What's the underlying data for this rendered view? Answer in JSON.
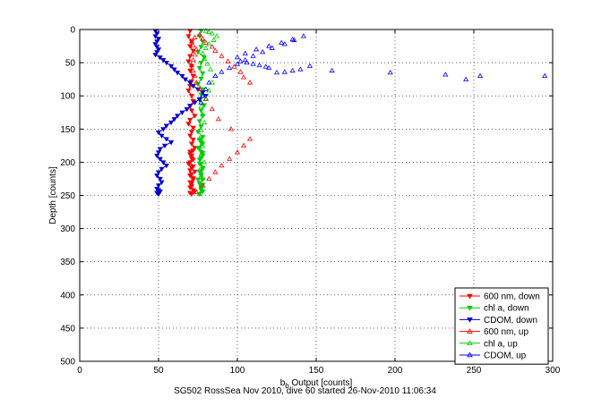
{
  "caption": "SG502 RossSea Nov 2010, dive 60 started 26-Nov-2010 11:06:34",
  "chart_data": {
    "type": "line",
    "xlabel_main": "b",
    "xlabel_sub": "b",
    "xlabel_rest": " Output [counts]",
    "ylabel": "Depth [counts]",
    "xlim": [
      0,
      300
    ],
    "ylim": [
      0,
      500
    ],
    "y_reversed": true,
    "grid": true,
    "legend_placement": "bottom-right",
    "xticks": [
      0,
      50,
      100,
      150,
      200,
      250,
      300
    ],
    "yticks": [
      0,
      50,
      100,
      150,
      200,
      250,
      300,
      350,
      400,
      450,
      500
    ],
    "series": [
      {
        "name": "600 nm, down",
        "color": "#ff0000",
        "marker": "triangle-down",
        "x": [
          70,
          69,
          71,
          70,
          72,
          70,
          69,
          71,
          70,
          72,
          71,
          70,
          69,
          71,
          72,
          70,
          71,
          73,
          70,
          69,
          72,
          71,
          70,
          72,
          71,
          73,
          70,
          71,
          72,
          69,
          71,
          73,
          70,
          72,
          71,
          70,
          73,
          71,
          70,
          72,
          71,
          70,
          72,
          71,
          70,
          72,
          70,
          71,
          70,
          72
        ],
        "y": [
          2,
          10,
          18,
          25,
          32,
          40,
          48,
          55,
          62,
          70,
          78,
          85,
          92,
          100,
          108,
          115,
          122,
          130,
          136,
          142,
          148,
          154,
          160,
          166,
          172,
          178,
          184,
          190,
          196,
          202,
          208,
          214,
          220,
          226,
          232,
          238,
          244,
          248,
          246,
          242,
          236,
          230,
          224,
          218,
          212,
          206,
          200,
          194,
          188,
          182
        ]
      },
      {
        "name": "chl a, down",
        "color": "#00cc00",
        "marker": "triangle-down",
        "x": [
          77,
          76,
          78,
          77,
          75,
          79,
          77,
          76,
          78,
          77,
          75,
          78,
          77,
          76,
          79,
          77,
          78,
          76,
          77,
          75,
          78,
          77,
          76,
          78,
          77,
          76,
          78,
          77,
          75,
          78,
          77,
          76,
          78,
          77,
          76,
          78,
          77,
          76,
          78,
          77,
          76,
          78,
          77,
          75,
          78,
          76
        ],
        "y": [
          2,
          10,
          18,
          26,
          34,
          42,
          50,
          58,
          66,
          74,
          82,
          90,
          98,
          106,
          114,
          122,
          130,
          138,
          146,
          154,
          162,
          170,
          178,
          186,
          194,
          202,
          210,
          218,
          226,
          234,
          242,
          248,
          244,
          238,
          232,
          226,
          220,
          214,
          208,
          202,
          196,
          190,
          184,
          178,
          172,
          166
        ]
      },
      {
        "name": "CDOM, down",
        "color": "#0000cc",
        "marker": "triangle-down",
        "x": [
          48,
          49,
          48,
          50,
          49,
          48,
          49,
          50,
          49,
          48,
          51,
          53,
          55,
          58,
          60,
          62,
          65,
          67,
          70,
          72,
          75,
          78,
          80,
          76,
          73,
          70,
          68,
          65,
          62,
          60,
          58,
          55,
          53,
          50,
          52,
          55,
          58,
          54,
          51,
          50,
          49,
          51,
          53,
          55,
          52,
          50,
          49,
          51,
          52,
          50,
          49,
          51,
          50,
          49,
          50
        ],
        "y": [
          2,
          6,
          10,
          14,
          18,
          22,
          26,
          30,
          34,
          38,
          42,
          46,
          50,
          55,
          60,
          65,
          70,
          75,
          80,
          85,
          90,
          95,
          100,
          105,
          110,
          115,
          120,
          125,
          130,
          135,
          140,
          145,
          150,
          155,
          160,
          165,
          170,
          175,
          180,
          185,
          190,
          195,
          200,
          205,
          210,
          215,
          220,
          225,
          230,
          235,
          240,
          244,
          248,
          246,
          242
        ]
      },
      {
        "name": "600 nm, up",
        "color": "#ff0000",
        "marker": "triangle-up",
        "x": [
          74,
          78,
          82,
          86,
          90,
          95,
          100,
          104,
          108,
          96,
          88,
          84,
          80,
          76,
          74,
          73,
          72,
          71,
          72,
          73,
          74,
          72,
          71,
          73,
          76,
          78,
          80,
          84,
          86,
          90,
          94,
          98,
          102,
          104,
          108
        ],
        "y": [
          245,
          235,
          225,
          215,
          205,
          195,
          185,
          175,
          165,
          150,
          135,
          120,
          105,
          90,
          80,
          70,
          62,
          54,
          46,
          38,
          30,
          24,
          18,
          12,
          8,
          14,
          20,
          26,
          32,
          40,
          48,
          56,
          64,
          72,
          80
        ]
      },
      {
        "name": "chl a, up",
        "color": "#00cc00",
        "marker": "triangle-up",
        "x": [
          76,
          77,
          78,
          76,
          79,
          77,
          78,
          76,
          77,
          79,
          78,
          77,
          80,
          82,
          84,
          86,
          83,
          81,
          79,
          78,
          80,
          82,
          85,
          87,
          84,
          82,
          80
        ],
        "y": [
          248,
          236,
          224,
          212,
          200,
          188,
          176,
          164,
          152,
          140,
          128,
          116,
          104,
          92,
          80,
          70,
          60,
          52,
          44,
          36,
          28,
          22,
          16,
          10,
          6,
          4,
          2
        ]
      },
      {
        "name": "CDOM, up",
        "color": "#0000ff",
        "marker": "triangle-up",
        "x": [
          295,
          254,
          245,
          232,
          197,
          160,
          146,
          140,
          135,
          130,
          125,
          120,
          118,
          114,
          110,
          106,
          102,
          100,
          105,
          112,
          120,
          128,
          135,
          142,
          136,
          130,
          122,
          116,
          110,
          105,
          100,
          95,
          90,
          86,
          82,
          80,
          78,
          77
        ],
        "y": [
          70,
          70,
          75,
          68,
          65,
          62,
          55,
          60,
          62,
          64,
          65,
          58,
          56,
          54,
          52,
          50,
          48,
          42,
          36,
          30,
          25,
          20,
          15,
          10,
          16,
          22,
          28,
          34,
          40,
          46,
          52,
          58,
          64,
          70,
          80,
          90,
          100,
          110
        ]
      }
    ]
  }
}
